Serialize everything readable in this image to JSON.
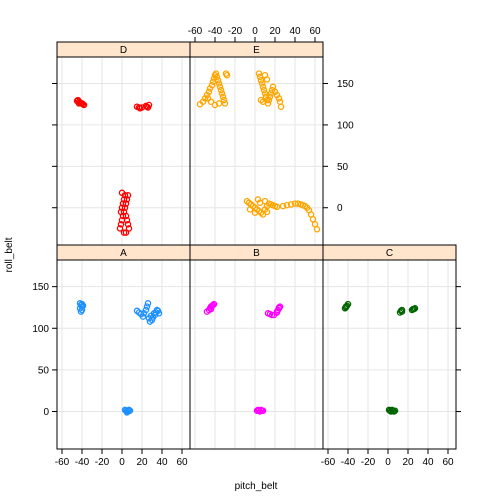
{
  "chart_data": {
    "type": "scatter",
    "xlabel": "pitch_belt",
    "ylabel": "roll_belt",
    "xlim": [
      -65,
      68
    ],
    "ylim": [
      -45,
      182
    ],
    "x_ticks": [
      -60,
      -40,
      -20,
      0,
      20,
      40,
      60
    ],
    "y_ticks": [
      0,
      50,
      100,
      150
    ],
    "grid": true,
    "colors": {
      "A": "#1e90ff",
      "B": "#ff00ff",
      "C": "#006400",
      "D": "#ff0000",
      "E": "#ffa500",
      "strip": "#ffe5cc",
      "grid": "#e6e6e6"
    },
    "panels": [
      {
        "label": "A",
        "points": [
          [
            -42,
            130
          ],
          [
            -41,
            128
          ],
          [
            -40,
            126
          ],
          [
            -42,
            124
          ],
          [
            -40,
            122
          ],
          [
            -41,
            120
          ],
          [
            -39,
            127
          ],
          [
            -40,
            129
          ],
          [
            15,
            121
          ],
          [
            17,
            119
          ],
          [
            19,
            117
          ],
          [
            21,
            114
          ],
          [
            22,
            118
          ],
          [
            24,
            122
          ],
          [
            25,
            126
          ],
          [
            26,
            130
          ],
          [
            27,
            112
          ],
          [
            28,
            108
          ],
          [
            30,
            110
          ],
          [
            31,
            113
          ],
          [
            33,
            116
          ],
          [
            34,
            119
          ],
          [
            36,
            121
          ],
          [
            37,
            118
          ],
          [
            35,
            122
          ],
          [
            32,
            118
          ],
          [
            29,
            115
          ],
          [
            3,
            2
          ],
          [
            4,
            1
          ],
          [
            5,
            0
          ],
          [
            6,
            1
          ],
          [
            7,
            2
          ],
          [
            8,
            1
          ],
          [
            5,
            -1
          ]
        ]
      },
      {
        "label": "B",
        "points": [
          [
            -48,
            120
          ],
          [
            -46,
            122
          ],
          [
            -45,
            124
          ],
          [
            -44,
            126
          ],
          [
            -43,
            127
          ],
          [
            -42,
            128
          ],
          [
            -41,
            129
          ],
          [
            -44,
            123
          ],
          [
            13,
            118
          ],
          [
            15,
            117
          ],
          [
            17,
            116
          ],
          [
            19,
            116
          ],
          [
            22,
            120
          ],
          [
            23,
            122
          ],
          [
            24,
            124
          ],
          [
            25,
            126
          ],
          [
            24,
            125
          ],
          [
            22,
            119
          ],
          [
            2,
            1
          ],
          [
            3,
            2
          ],
          [
            4,
            1
          ],
          [
            5,
            0
          ],
          [
            6,
            2
          ],
          [
            7,
            1
          ],
          [
            8,
            1
          ]
        ]
      },
      {
        "label": "C",
        "points": [
          [
            -43,
            124
          ],
          [
            -42,
            126
          ],
          [
            -41,
            127
          ],
          [
            -40,
            129
          ],
          [
            -42,
            125
          ],
          [
            12,
            119
          ],
          [
            13,
            121
          ],
          [
            14,
            120
          ],
          [
            14,
            122
          ],
          [
            24,
            122
          ],
          [
            25,
            123
          ],
          [
            27,
            124
          ],
          [
            26,
            123
          ],
          [
            1,
            2
          ],
          [
            2,
            1
          ],
          [
            3,
            0
          ],
          [
            4,
            2
          ],
          [
            5,
            1
          ],
          [
            6,
            0
          ],
          [
            7,
            1
          ]
        ]
      },
      {
        "label": "D",
        "points": [
          [
            -45,
            129
          ],
          [
            -44,
            130
          ],
          [
            -43,
            128
          ],
          [
            -42,
            127
          ],
          [
            -41,
            126
          ],
          [
            -40,
            126
          ],
          [
            -39,
            125
          ],
          [
            -38,
            124
          ],
          [
            -43,
            126
          ],
          [
            15,
            122
          ],
          [
            17,
            121
          ],
          [
            18,
            120
          ],
          [
            20,
            121
          ],
          [
            24,
            123
          ],
          [
            25,
            122
          ],
          [
            26,
            121
          ],
          [
            27,
            124
          ],
          [
            -2,
            -25
          ],
          [
            -1,
            -20
          ],
          [
            0,
            -15
          ],
          [
            1,
            -10
          ],
          [
            2,
            -5
          ],
          [
            3,
            0
          ],
          [
            4,
            5
          ],
          [
            5,
            10
          ],
          [
            6,
            15
          ],
          [
            -1,
            -5
          ],
          [
            0,
            0
          ],
          [
            1,
            5
          ],
          [
            2,
            10
          ],
          [
            3,
            15
          ],
          [
            4,
            -10
          ],
          [
            5,
            -15
          ],
          [
            6,
            -20
          ],
          [
            7,
            -25
          ],
          [
            0,
            18
          ],
          [
            2,
            -30
          ],
          [
            4,
            -30
          ]
        ]
      },
      {
        "label": "E",
        "points": [
          [
            -55,
            125
          ],
          [
            -52,
            128
          ],
          [
            -50,
            132
          ],
          [
            -48,
            136
          ],
          [
            -46,
            140
          ],
          [
            -45,
            144
          ],
          [
            -43,
            148
          ],
          [
            -42,
            152
          ],
          [
            -41,
            156
          ],
          [
            -40,
            160
          ],
          [
            -39,
            162
          ],
          [
            -38,
            158
          ],
          [
            -37,
            154
          ],
          [
            -36,
            150
          ],
          [
            -35,
            146
          ],
          [
            -34,
            142
          ],
          [
            -33,
            138
          ],
          [
            -32,
            134
          ],
          [
            -31,
            130
          ],
          [
            -30,
            126
          ],
          [
            -29,
            162
          ],
          [
            -28,
            160
          ],
          [
            -44,
            128
          ],
          [
            -40,
            124
          ],
          [
            -36,
            126
          ],
          [
            -47,
            132
          ],
          [
            4,
            162
          ],
          [
            5,
            158
          ],
          [
            6,
            154
          ],
          [
            7,
            150
          ],
          [
            8,
            146
          ],
          [
            9,
            142
          ],
          [
            10,
            138
          ],
          [
            11,
            134
          ],
          [
            12,
            130
          ],
          [
            13,
            126
          ],
          [
            14,
            130
          ],
          [
            15,
            134
          ],
          [
            16,
            138
          ],
          [
            17,
            142
          ],
          [
            18,
            146
          ],
          [
            20,
            140
          ],
          [
            22,
            136
          ],
          [
            24,
            132
          ],
          [
            25,
            128
          ],
          [
            26,
            122
          ],
          [
            10,
            160
          ],
          [
            12,
            155
          ],
          [
            6,
            130
          ],
          [
            8,
            128
          ],
          [
            -8,
            8
          ],
          [
            -6,
            6
          ],
          [
            -4,
            4
          ],
          [
            -2,
            2
          ],
          [
            0,
            0
          ],
          [
            2,
            -2
          ],
          [
            4,
            -4
          ],
          [
            6,
            -6
          ],
          [
            8,
            -8
          ],
          [
            10,
            -2
          ],
          [
            12,
            2
          ],
          [
            14,
            5
          ],
          [
            16,
            4
          ],
          [
            18,
            3
          ],
          [
            20,
            2
          ],
          [
            22,
            1
          ],
          [
            -5,
            -2
          ],
          [
            0,
            -6
          ],
          [
            5,
            6
          ],
          [
            10,
            8
          ],
          [
            12,
            -5
          ],
          [
            3,
            10
          ],
          [
            28,
            2
          ],
          [
            32,
            3
          ],
          [
            36,
            4
          ],
          [
            40,
            5
          ],
          [
            43,
            5
          ],
          [
            46,
            4
          ],
          [
            48,
            3
          ],
          [
            50,
            2
          ],
          [
            52,
            0
          ],
          [
            54,
            -3
          ],
          [
            56,
            -8
          ],
          [
            58,
            -14
          ],
          [
            60,
            -20
          ],
          [
            62,
            -26
          ]
        ]
      }
    ]
  }
}
